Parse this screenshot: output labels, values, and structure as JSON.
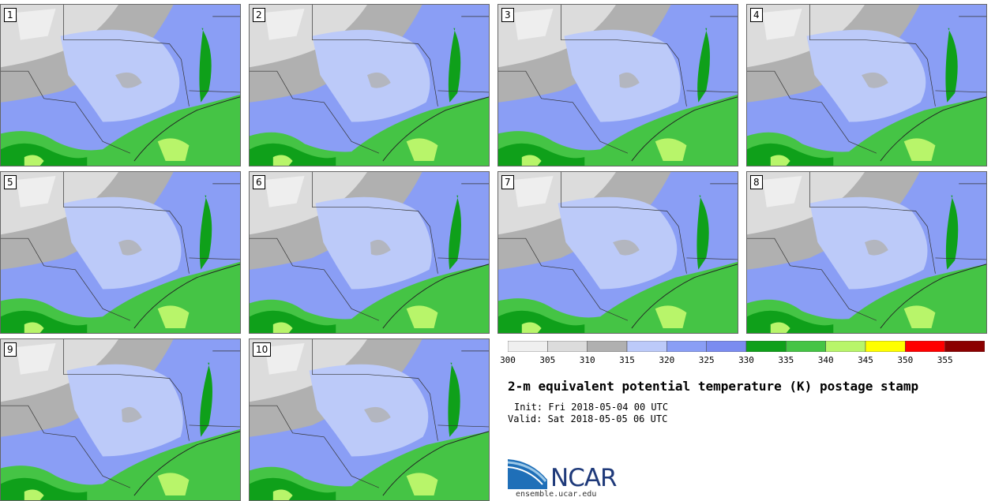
{
  "panels": [
    "1",
    "2",
    "3",
    "4",
    "5",
    "6",
    "7",
    "8",
    "9",
    "10"
  ],
  "colorbar": {
    "ticks": [
      "300",
      "305",
      "310",
      "315",
      "320",
      "325",
      "330",
      "335",
      "340",
      "345",
      "350",
      "355"
    ],
    "colors": [
      "#efefef",
      "#dcdcdc",
      "#b0b0b0",
      "#bccaf9",
      "#8a9ef5",
      "#7b8cf0",
      "#0fa01a",
      "#45c445",
      "#b8f56a",
      "#ffff00",
      "#ff0000",
      "#8b0000"
    ]
  },
  "title": "2-m equivalent potential temperature (K) postage stamp",
  "init": "Init: Fri 2018-05-04 00 UTC",
  "valid": "Valid: Sat 2018-05-05 06 UTC",
  "logo": {
    "text": "NCAR",
    "url": "ensemble.ucar.edu"
  }
}
